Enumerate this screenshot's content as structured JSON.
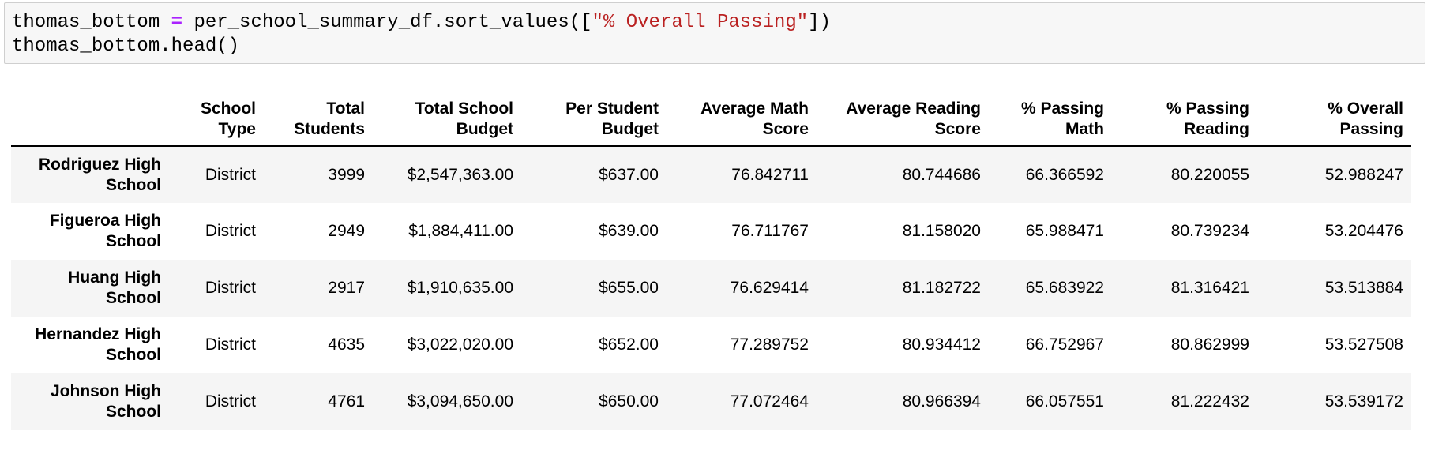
{
  "code": {
    "line1": {
      "var": "thomas_bottom ",
      "op": "=",
      "call": " per_school_summary_df.sort_values([",
      "arg": "\"% Overall Passing\"",
      "close": "])"
    },
    "line2": "thomas_bottom.head()"
  },
  "output_table": {
    "columns": [
      [
        "",
        ""
      ],
      [
        "School",
        "Type"
      ],
      [
        "Total",
        "Students"
      ],
      [
        "Total School",
        "Budget"
      ],
      [
        "Per Student",
        "Budget"
      ],
      [
        "Average Math",
        "Score"
      ],
      [
        "Average Reading",
        "Score"
      ],
      [
        "% Passing",
        "Math"
      ],
      [
        "% Passing",
        "Reading"
      ],
      [
        "% Overall",
        "Passing"
      ]
    ],
    "rows": [
      {
        "index": [
          "Rodriguez High",
          "School"
        ],
        "cells": [
          "District",
          "3999",
          "$2,547,363.00",
          "$637.00",
          "76.842711",
          "80.744686",
          "66.366592",
          "80.220055",
          "52.988247"
        ]
      },
      {
        "index": [
          "Figueroa High",
          "School"
        ],
        "cells": [
          "District",
          "2949",
          "$1,884,411.00",
          "$639.00",
          "76.711767",
          "81.158020",
          "65.988471",
          "80.739234",
          "53.204476"
        ]
      },
      {
        "index": [
          "Huang High",
          "School"
        ],
        "cells": [
          "District",
          "2917",
          "$1,910,635.00",
          "$655.00",
          "76.629414",
          "81.182722",
          "65.683922",
          "81.316421",
          "53.513884"
        ]
      },
      {
        "index": [
          "Hernandez High",
          "School"
        ],
        "cells": [
          "District",
          "4635",
          "$3,022,020.00",
          "$652.00",
          "77.289752",
          "80.934412",
          "66.752967",
          "80.862999",
          "53.527508"
        ]
      },
      {
        "index": [
          "Johnson High",
          "School"
        ],
        "cells": [
          "District",
          "4761",
          "$3,094,650.00",
          "$650.00",
          "77.072464",
          "80.966394",
          "66.057551",
          "81.222432",
          "53.539172"
        ]
      }
    ]
  },
  "colors": {
    "code_bg": "#f7f7f7",
    "code_border": "#cfcfcf",
    "operator": "#aa22ff",
    "string": "#ba2121",
    "row_stripe": "#f5f5f5"
  }
}
